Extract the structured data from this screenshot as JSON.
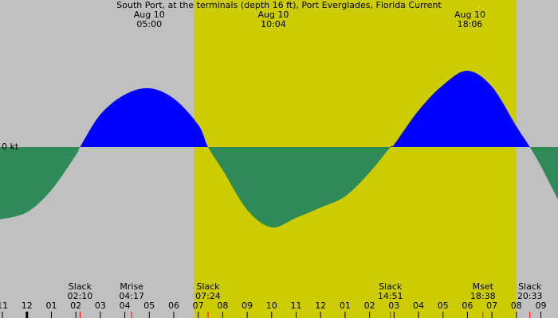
{
  "chart_data": {
    "type": "area",
    "title": "South Port, at the terminals (depth 16 ft), Port Everglades, Florida Current",
    "x": [
      -1.1,
      0,
      1,
      2,
      2.17,
      3,
      4,
      5,
      6,
      7,
      7.4,
      8,
      9,
      10,
      11,
      12,
      13,
      14,
      14.85,
      15,
      16,
      17,
      18,
      19,
      20,
      20.55,
      21,
      21.7
    ],
    "values": [
      -1.82,
      -1.64,
      -1.08,
      -0.2,
      0,
      0.82,
      1.32,
      1.48,
      1.22,
      0.56,
      0,
      -0.58,
      -1.58,
      -2.02,
      -1.78,
      -1.52,
      -1.24,
      -0.64,
      0,
      0.06,
      0.92,
      1.56,
      1.92,
      1.52,
      0.52,
      0,
      -0.48,
      -1.32
    ],
    "xlim": [
      -1.1,
      21.7
    ],
    "ylim": [
      -4.3,
      3.7
    ],
    "xticks": [
      {
        "value": -1,
        "label": "11"
      },
      {
        "value": 0,
        "label": "12"
      },
      {
        "value": 1,
        "label": "01"
      },
      {
        "value": 2,
        "label": "02"
      },
      {
        "value": 3,
        "label": "03"
      },
      {
        "value": 4,
        "label": "04"
      },
      {
        "value": 5,
        "label": "05"
      },
      {
        "value": 6,
        "label": "06"
      },
      {
        "value": 7,
        "label": "07"
      },
      {
        "value": 8,
        "label": "08"
      },
      {
        "value": 9,
        "label": "09"
      },
      10,
      11,
      12,
      {
        "value": 13,
        "label": "01"
      },
      {
        "value": 14,
        "label": "02"
      },
      {
        "value": 15,
        "label": "03"
      },
      {
        "value": 16,
        "label": "04"
      },
      {
        "value": 17,
        "label": "05"
      },
      {
        "value": 18,
        "label": "06"
      },
      {
        "value": 19,
        "label": "07"
      },
      {
        "value": 20,
        "label": "08"
      },
      {
        "value": 21,
        "label": "09"
      }
    ],
    "yticks": [
      {
        "value": 0,
        "label": "0 kt"
      }
    ],
    "color_above": "#0000ff",
    "color_below": "#2e8b57",
    "background": "#c0c0c0",
    "daylight": [
      6.83,
      20.0
    ],
    "daylight_color": "#cccc00",
    "peaks": [
      {
        "date": "Aug 10",
        "time": "05:00",
        "x": 5.0
      },
      {
        "date": "Aug 10",
        "time": "10:04",
        "x": 10.07
      },
      {
        "date": "Aug 10",
        "time": "18:06",
        "x": 18.1
      }
    ],
    "events": [
      {
        "name": "Slack",
        "time": "02:10",
        "x": 2.17
      },
      {
        "name": "Mrise",
        "time": "04:17",
        "x": 4.28
      },
      {
        "name": "Slack",
        "time": "07:24",
        "x": 7.4
      },
      {
        "name": "Slack",
        "time": "14:51",
        "x": 14.85
      },
      {
        "name": "Mset",
        "time": "18:38",
        "x": 18.63
      },
      {
        "name": "Slack",
        "time": "20:33",
        "x": 20.55
      }
    ]
  }
}
